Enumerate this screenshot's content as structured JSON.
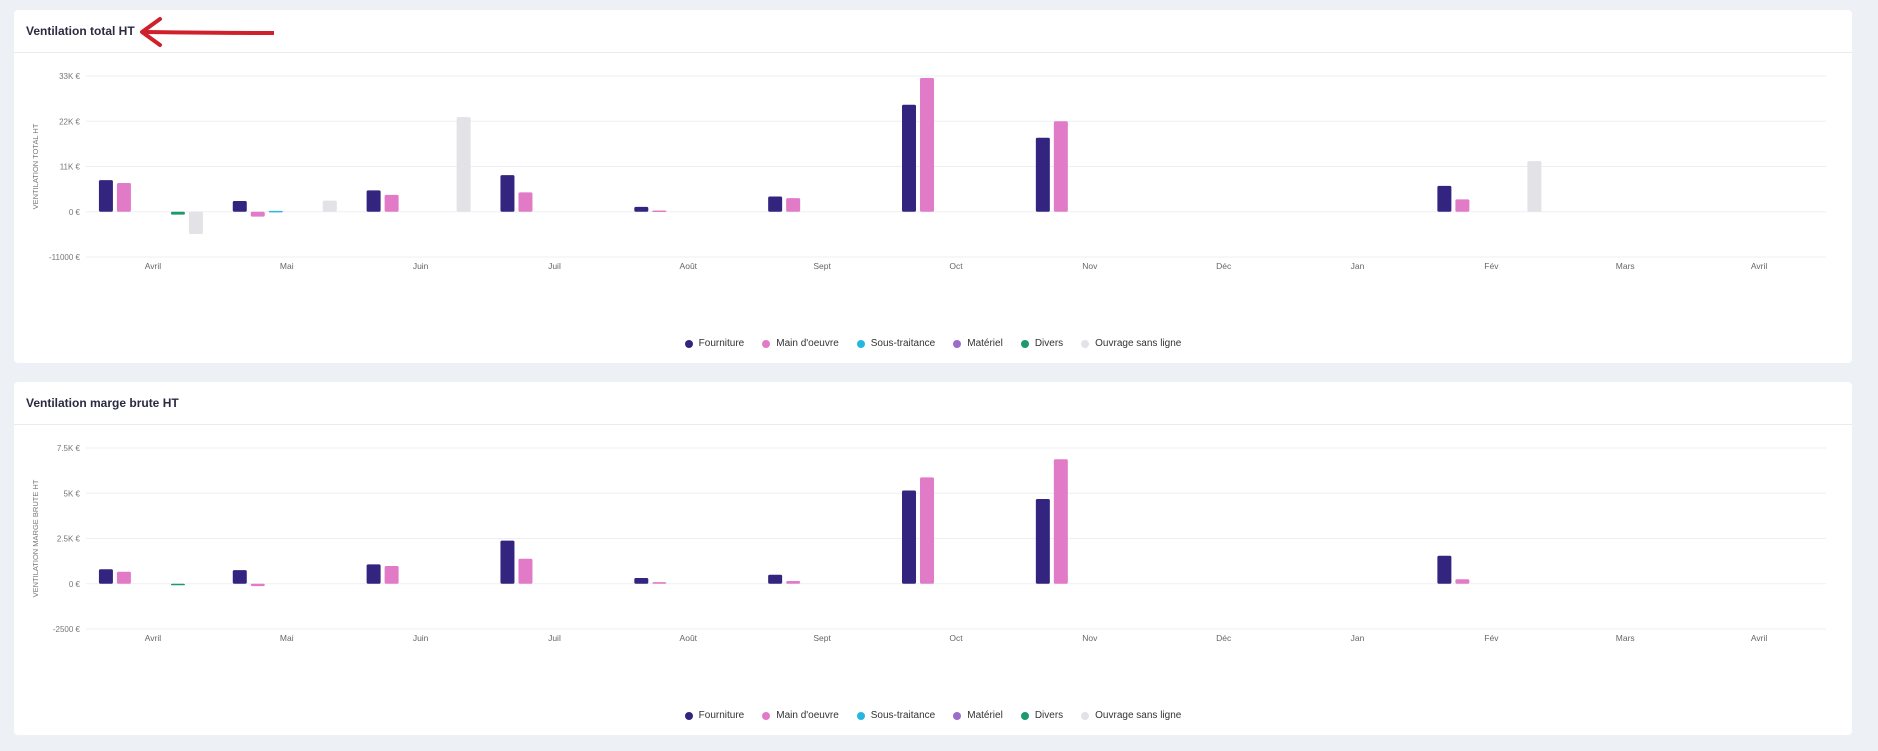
{
  "colors": {
    "Fourniture": "#33247f",
    "Main d'oeuvre": "#e27bc7",
    "Sous-traitance": "#26b6e0",
    "Matériel": "#9b6cc8",
    "Divers": "#1c9a6c",
    "Ouvrage sans ligne": "#e2e2e7",
    "annotation_arrow": "#d0202c"
  },
  "legend": [
    "Fourniture",
    "Main d'oeuvre",
    "Sous-traitance",
    "Matériel",
    "Divers",
    "Ouvrage sans ligne"
  ],
  "chart_data": [
    {
      "type": "bar",
      "title": "Ventilation total HT",
      "ylabel": "VENTILATION TOTAL HT",
      "ylim": [
        -11000,
        33000
      ],
      "yticks": [
        33000,
        22000,
        11000,
        0,
        -11000
      ],
      "ytick_labels": [
        "33K €",
        "22K €",
        "11K €",
        "0 €",
        "-11000 €"
      ],
      "categories": [
        "Avril",
        "Mai",
        "Juin",
        "Juil",
        "Août",
        "Sept",
        "Oct",
        "Nov",
        "Déc",
        "Jan",
        "Fév",
        "Mars",
        "Avril"
      ],
      "grid": true,
      "legend_position": "bottom",
      "series": [
        {
          "name": "Fourniture",
          "values": [
            7700,
            2600,
            5200,
            8900,
            1200,
            3700,
            26000,
            18000,
            0,
            0,
            6300,
            0,
            0
          ]
        },
        {
          "name": "Main d'oeuvre",
          "values": [
            7000,
            -1200,
            4100,
            4700,
            300,
            3300,
            32500,
            22000,
            0,
            0,
            3000,
            0,
            0
          ]
        },
        {
          "name": "Sous-traitance",
          "values": [
            0,
            200,
            0,
            0,
            0,
            0,
            0,
            0,
            0,
            0,
            0,
            0,
            0
          ]
        },
        {
          "name": "Matériel",
          "values": [
            0,
            0,
            0,
            0,
            0,
            0,
            0,
            0,
            0,
            0,
            0,
            0,
            0
          ]
        },
        {
          "name": "Divers",
          "values": [
            -700,
            0,
            0,
            0,
            0,
            0,
            0,
            0,
            0,
            0,
            0,
            0,
            0
          ]
        },
        {
          "name": "Ouvrage sans ligne",
          "values": [
            -5400,
            2700,
            23000,
            0,
            0,
            0,
            0,
            0,
            0,
            0,
            12300,
            0,
            0
          ]
        }
      ]
    },
    {
      "type": "bar",
      "title": "Ventilation marge brute HT",
      "ylabel": "VENTILATION MARGE BRUTE HT",
      "ylim": [
        -2500,
        7500
      ],
      "yticks": [
        7500,
        5000,
        2500,
        0,
        -2500
      ],
      "ytick_labels": [
        "7.5K €",
        "5K €",
        "2.5K €",
        "0 €",
        "-2500 €"
      ],
      "categories": [
        "Avril",
        "Mai",
        "Juin",
        "Juil",
        "Août",
        "Sept",
        "Oct",
        "Nov",
        "Déc",
        "Jan",
        "Fév",
        "Mars",
        "Avril"
      ],
      "grid": true,
      "legend_position": "bottom",
      "series": [
        {
          "name": "Fourniture",
          "values": [
            800,
            750,
            1070,
            2380,
            320,
            500,
            5150,
            4680,
            0,
            0,
            1550,
            0,
            0
          ]
        },
        {
          "name": "Main d'oeuvre",
          "values": [
            660,
            -130,
            980,
            1380,
            90,
            150,
            5880,
            6880,
            0,
            0,
            250,
            0,
            0
          ]
        },
        {
          "name": "Sous-traitance",
          "values": [
            0,
            0,
            0,
            0,
            0,
            0,
            0,
            0,
            0,
            0,
            0,
            0,
            0
          ]
        },
        {
          "name": "Matériel",
          "values": [
            0,
            0,
            0,
            0,
            0,
            0,
            0,
            0,
            0,
            0,
            0,
            0,
            0
          ]
        },
        {
          "name": "Divers",
          "values": [
            -50,
            0,
            0,
            0,
            0,
            0,
            0,
            0,
            0,
            0,
            0,
            0,
            0
          ]
        },
        {
          "name": "Ouvrage sans ligne",
          "values": [
            0,
            0,
            0,
            0,
            0,
            0,
            0,
            0,
            0,
            0,
            0,
            0,
            0
          ]
        }
      ]
    }
  ]
}
